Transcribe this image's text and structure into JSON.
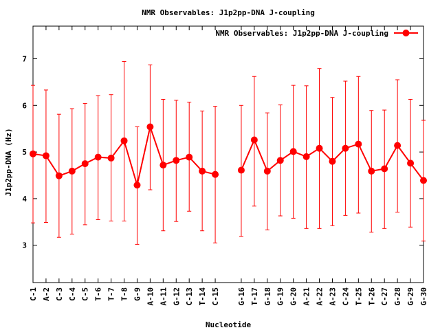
{
  "chart_data": {
    "type": "line",
    "title": "NMR Observables: J1p2pp-DNA J-coupling",
    "xlabel": "Nucleotide",
    "ylabel": "J1p2pp-DNA (Hz)",
    "ylim": [
      2.2,
      7.7
    ],
    "yticks": [
      3,
      4,
      5,
      6,
      7
    ],
    "grid": false,
    "legend_position": "top-right",
    "series": [
      {
        "name": "NMR Observables: J1p2pp-DNA J-coupling",
        "color": "#ff0000",
        "marker": "circle",
        "categories": [
          "C-1",
          "A-2",
          "C-3",
          "C-4",
          "C-5",
          "T-6",
          "T-7",
          "T-8",
          "G-9",
          "A-10",
          "A-11",
          "G-12",
          "C-13",
          "T-14",
          "C-15",
          "G-16",
          "T-17",
          "G-18",
          "G-19",
          "G-20",
          "A-21",
          "A-22",
          "A-23",
          "C-24",
          "T-25",
          "T-26",
          "C-27",
          "G-28",
          "G-29",
          "G-30"
        ],
        "segments": [
          {
            "x": [
              1,
              2,
              3,
              4,
              5,
              6,
              7,
              8,
              9,
              10,
              11,
              12,
              13,
              14,
              15
            ],
            "values": [
              4.96,
              4.92,
              4.49,
              4.59,
              4.75,
              4.89,
              4.87,
              5.24,
              4.29,
              5.54,
              4.72,
              4.82,
              4.89,
              4.59,
              4.52
            ],
            "err_low": [
              3.48,
              3.49,
              3.17,
              3.24,
              3.44,
              3.55,
              3.52,
              3.52,
              3.02,
              4.19,
              3.31,
              3.51,
              3.73,
              3.31,
              3.05
            ],
            "err_high": [
              6.43,
              6.33,
              5.81,
              5.93,
              6.04,
              6.21,
              6.23,
              6.94,
              5.54,
              6.87,
              6.13,
              6.11,
              6.07,
              5.88,
              5.98
            ]
          },
          {
            "x": [
              17,
              18,
              19,
              20,
              21,
              22,
              23,
              24,
              25,
              26,
              27,
              28,
              29,
              30,
              31
            ],
            "values": [
              4.61,
              5.26,
              4.59,
              4.82,
              5.01,
              4.9,
              5.08,
              4.8,
              5.08,
              5.17,
              4.59,
              4.64,
              5.14,
              4.76,
              4.39
            ],
            "err_low": [
              3.19,
              3.84,
              3.33,
              3.63,
              3.58,
              3.36,
              3.36,
              3.42,
              3.64,
              3.69,
              3.28,
              3.36,
              3.71,
              3.39,
              3.09
            ],
            "err_high": [
              6.0,
              6.62,
              5.84,
              6.01,
              6.43,
              6.42,
              6.79,
              6.17,
              6.52,
              6.62,
              5.89,
              5.9,
              6.55,
              6.13,
              5.68
            ]
          }
        ]
      }
    ],
    "x_ticks": [
      {
        "x": 1,
        "label": "C-1"
      },
      {
        "x": 2,
        "label": "A-2"
      },
      {
        "x": 3,
        "label": "C-3"
      },
      {
        "x": 4,
        "label": "C-4"
      },
      {
        "x": 5,
        "label": "C-5"
      },
      {
        "x": 6,
        "label": "T-6"
      },
      {
        "x": 7,
        "label": "T-7"
      },
      {
        "x": 8,
        "label": "T-8"
      },
      {
        "x": 9,
        "label": "G-9"
      },
      {
        "x": 10,
        "label": "A-10"
      },
      {
        "x": 11,
        "label": "A-11"
      },
      {
        "x": 12,
        "label": "G-12"
      },
      {
        "x": 13,
        "label": "C-13"
      },
      {
        "x": 14,
        "label": "T-14"
      },
      {
        "x": 15,
        "label": "C-15"
      },
      {
        "x": 17,
        "label": "G-16"
      },
      {
        "x": 18,
        "label": "T-17"
      },
      {
        "x": 19,
        "label": "G-18"
      },
      {
        "x": 20,
        "label": "G-19"
      },
      {
        "x": 21,
        "label": "G-20"
      },
      {
        "x": 22,
        "label": "A-21"
      },
      {
        "x": 23,
        "label": "A-22"
      },
      {
        "x": 24,
        "label": "A-23"
      },
      {
        "x": 25,
        "label": "C-24"
      },
      {
        "x": 26,
        "label": "T-25"
      },
      {
        "x": 27,
        "label": "T-26"
      },
      {
        "x": 28,
        "label": "C-27"
      },
      {
        "x": 29,
        "label": "G-28"
      },
      {
        "x": 30,
        "label": "G-29"
      },
      {
        "x": 31,
        "label": "G-30"
      }
    ],
    "xlim": [
      1,
      31
    ]
  }
}
